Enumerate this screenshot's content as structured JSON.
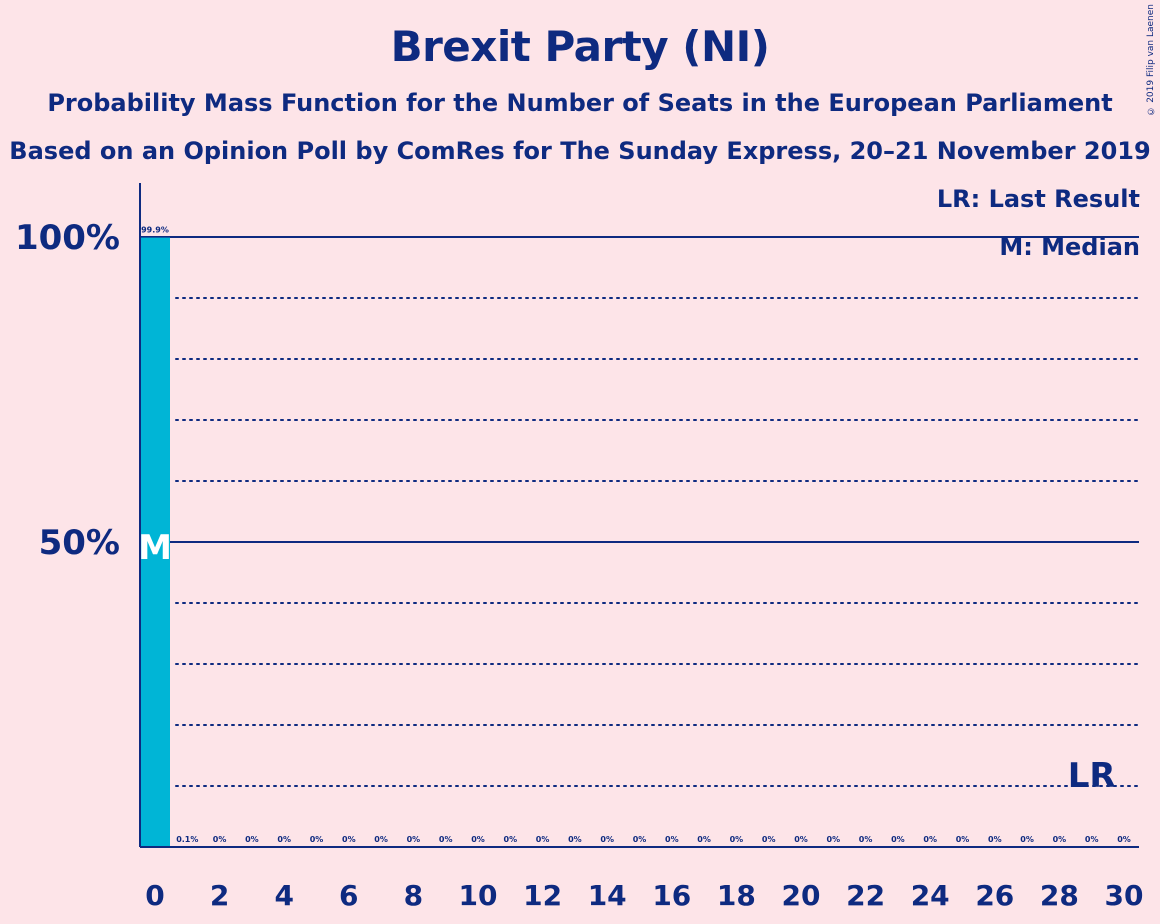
{
  "copyright": "© 2019 Filip van Laenen",
  "legend": {
    "last_result": "LR: Last Result",
    "median": "M: Median"
  },
  "colors": {
    "background": "#fde4e8",
    "bar": "#00b5d6",
    "text": "#0e2a80"
  },
  "chart_data": {
    "type": "bar",
    "title": "Brexit Party (NI)",
    "subtitle": "Probability Mass Function for the Number of Seats in the European Parliament",
    "subtitle2": "Based on an Opinion Poll by ComRes for The Sunday Express, 20–21 November 2019",
    "xlabel": "",
    "ylabel": "",
    "x": [
      0,
      1,
      2,
      3,
      4,
      5,
      6,
      7,
      8,
      9,
      10,
      11,
      12,
      13,
      14,
      15,
      16,
      17,
      18,
      19,
      20,
      21,
      22,
      23,
      24,
      25,
      26,
      27,
      28,
      29,
      30
    ],
    "values": [
      99.9,
      0.1,
      0,
      0,
      0,
      0,
      0,
      0,
      0,
      0,
      0,
      0,
      0,
      0,
      0,
      0,
      0,
      0,
      0,
      0,
      0,
      0,
      0,
      0,
      0,
      0,
      0,
      0,
      0,
      0,
      0
    ],
    "value_labels": [
      "99.9%",
      "0.1%",
      "0%",
      "0%",
      "0%",
      "0%",
      "0%",
      "0%",
      "0%",
      "0%",
      "0%",
      "0%",
      "0%",
      "0%",
      "0%",
      "0%",
      "0%",
      "0%",
      "0%",
      "0%",
      "0%",
      "0%",
      "0%",
      "0%",
      "0%",
      "0%",
      "0%",
      "0%",
      "0%",
      "0%",
      "0%"
    ],
    "x_tick_labels": [
      "0",
      "2",
      "4",
      "6",
      "8",
      "10",
      "12",
      "14",
      "16",
      "18",
      "20",
      "22",
      "24",
      "26",
      "28",
      "30"
    ],
    "x_tick_values": [
      0,
      2,
      4,
      6,
      8,
      10,
      12,
      14,
      16,
      18,
      20,
      22,
      24,
      26,
      28,
      30
    ],
    "y_tick_labels": [
      "100%",
      "50%"
    ],
    "y_tick_values": [
      100,
      50
    ],
    "ylim": [
      0,
      100
    ],
    "grid_dotted_values": [
      10,
      20,
      30,
      40,
      60,
      70,
      80,
      90
    ],
    "grid_solid_values": [
      50,
      100
    ],
    "median_seat": 0,
    "median_marker": "M",
    "last_result_seat": 29,
    "last_result_marker": "LR"
  }
}
